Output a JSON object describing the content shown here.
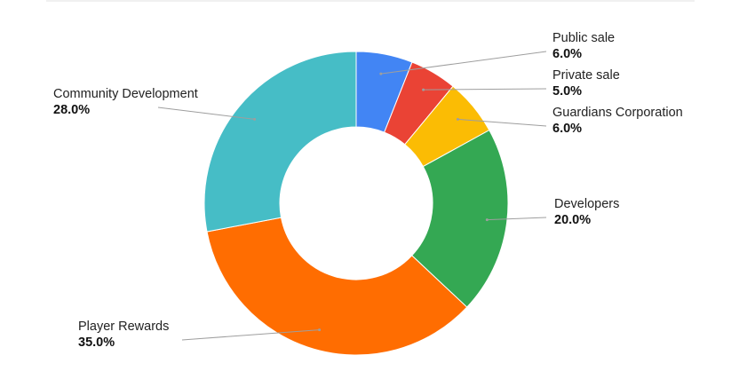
{
  "chart_data": {
    "type": "pie",
    "donut": true,
    "title": "",
    "legend": "none",
    "start": "top",
    "direction": "clockwise",
    "slices": [
      {
        "label": "Public sale",
        "value": 6.0,
        "value_label": "6.0%",
        "color": "#4285f4"
      },
      {
        "label": "Private sale",
        "value": 5.0,
        "value_label": "5.0%",
        "color": "#ea4335"
      },
      {
        "label": "Guardians Corporation",
        "value": 6.0,
        "value_label": "6.0%",
        "color": "#fbbc04"
      },
      {
        "label": "Developers",
        "value": 20.0,
        "value_label": "20.0%",
        "color": "#34a853"
      },
      {
        "label": "Player Rewards",
        "value": 35.0,
        "value_label": "35.0%",
        "color": "#ff6d01"
      },
      {
        "label": "Community Development",
        "value": 28.0,
        "value_label": "28.0%",
        "color": "#46bdc6"
      }
    ]
  }
}
